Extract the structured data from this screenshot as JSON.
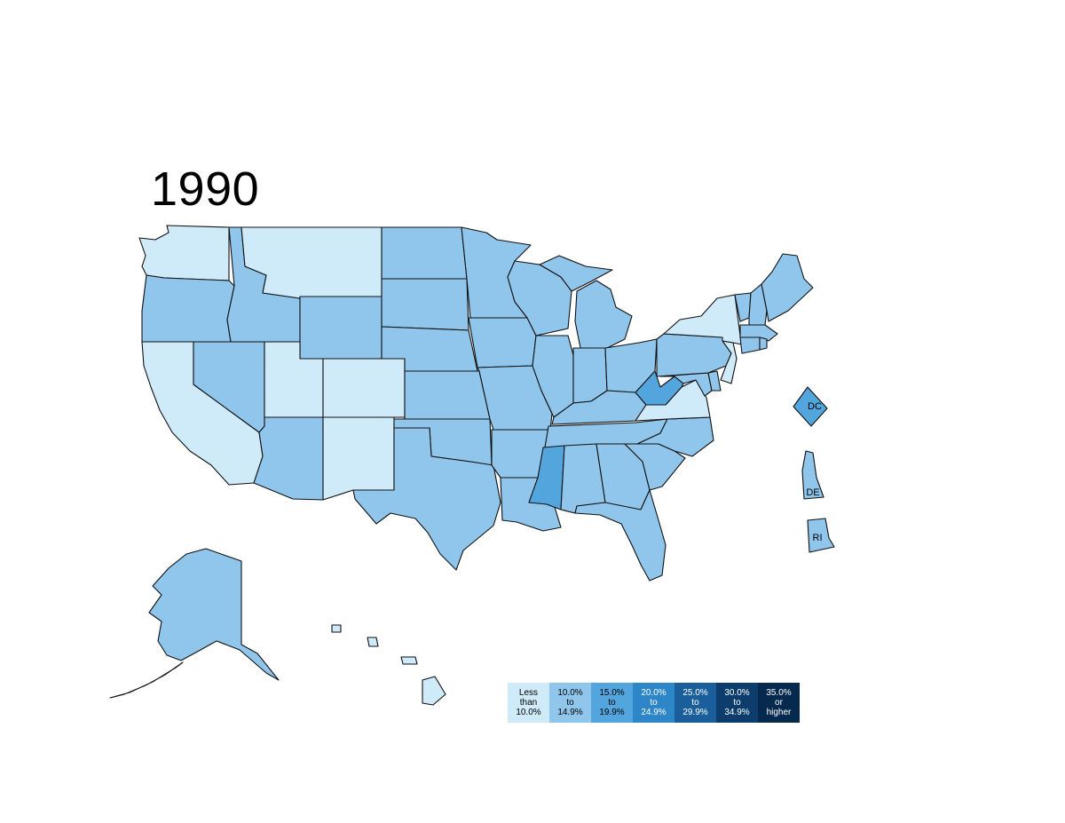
{
  "title": "1990",
  "colors": {
    "lt10": "#cfeaf9",
    "b10_15": "#90c6ec",
    "b15_20": "#53a5dd",
    "b20_25": "#2c86c8",
    "b25_30": "#1a5f9b",
    "b30_35": "#0c3d6c",
    "ge35": "#062a4e"
  },
  "states": {
    "WA": "lt10",
    "OR": "b10_15",
    "CA": "lt10",
    "ID": "b10_15",
    "NV": "b10_15",
    "MT": "lt10",
    "WY": "b10_15",
    "UT": "lt10",
    "CO": "lt10",
    "AZ": "b10_15",
    "NM": "lt10",
    "ND": "b10_15",
    "SD": "b10_15",
    "NE": "b10_15",
    "KS": "b10_15",
    "OK": "b10_15",
    "TX": "b10_15",
    "MN": "b10_15",
    "IA": "b10_15",
    "MO": "b10_15",
    "AR": "b10_15",
    "LA": "b10_15",
    "WI": "b10_15",
    "IL": "b10_15",
    "MI": "b10_15",
    "IN": "b10_15",
    "OH": "b10_15",
    "KY": "b10_15",
    "TN": "b10_15",
    "MS": "b15_20",
    "AL": "b10_15",
    "GA": "b10_15",
    "FL": "b10_15",
    "SC": "b10_15",
    "NC": "b10_15",
    "VA": "lt10",
    "WV": "b15_20",
    "MD": "b10_15",
    "DE": "b10_15",
    "PA": "b10_15",
    "NJ": "lt10",
    "NY": "lt10",
    "CT": "b10_15",
    "RI": "b10_15",
    "MA": "b10_15",
    "VT": "b10_15",
    "NH": "b10_15",
    "ME": "b10_15",
    "AK": "b10_15",
    "HI": "lt10",
    "DC": "b15_20"
  },
  "insets": {
    "dc": "DC",
    "de": "DE",
    "ri": "RI"
  },
  "legend": [
    {
      "text": "Less\nthan\n10.0%",
      "key": "lt10",
      "fg": "#000000"
    },
    {
      "text": "10.0%\nto\n14.9%",
      "key": "b10_15",
      "fg": "#000000"
    },
    {
      "text": "15.0%\nto\n19.9%",
      "key": "b15_20",
      "fg": "#000000"
    },
    {
      "text": "20.0%\nto\n24.9%",
      "key": "b20_25",
      "fg": "#ffffff"
    },
    {
      "text": "25.0%\nto\n29.9%",
      "key": "b25_30",
      "fg": "#ffffff"
    },
    {
      "text": "30.0%\nto\n34.9%",
      "key": "b30_35",
      "fg": "#ffffff"
    },
    {
      "text": "35.0%\nor\nhigher",
      "key": "ge35",
      "fg": "#ffffff"
    }
  ]
}
